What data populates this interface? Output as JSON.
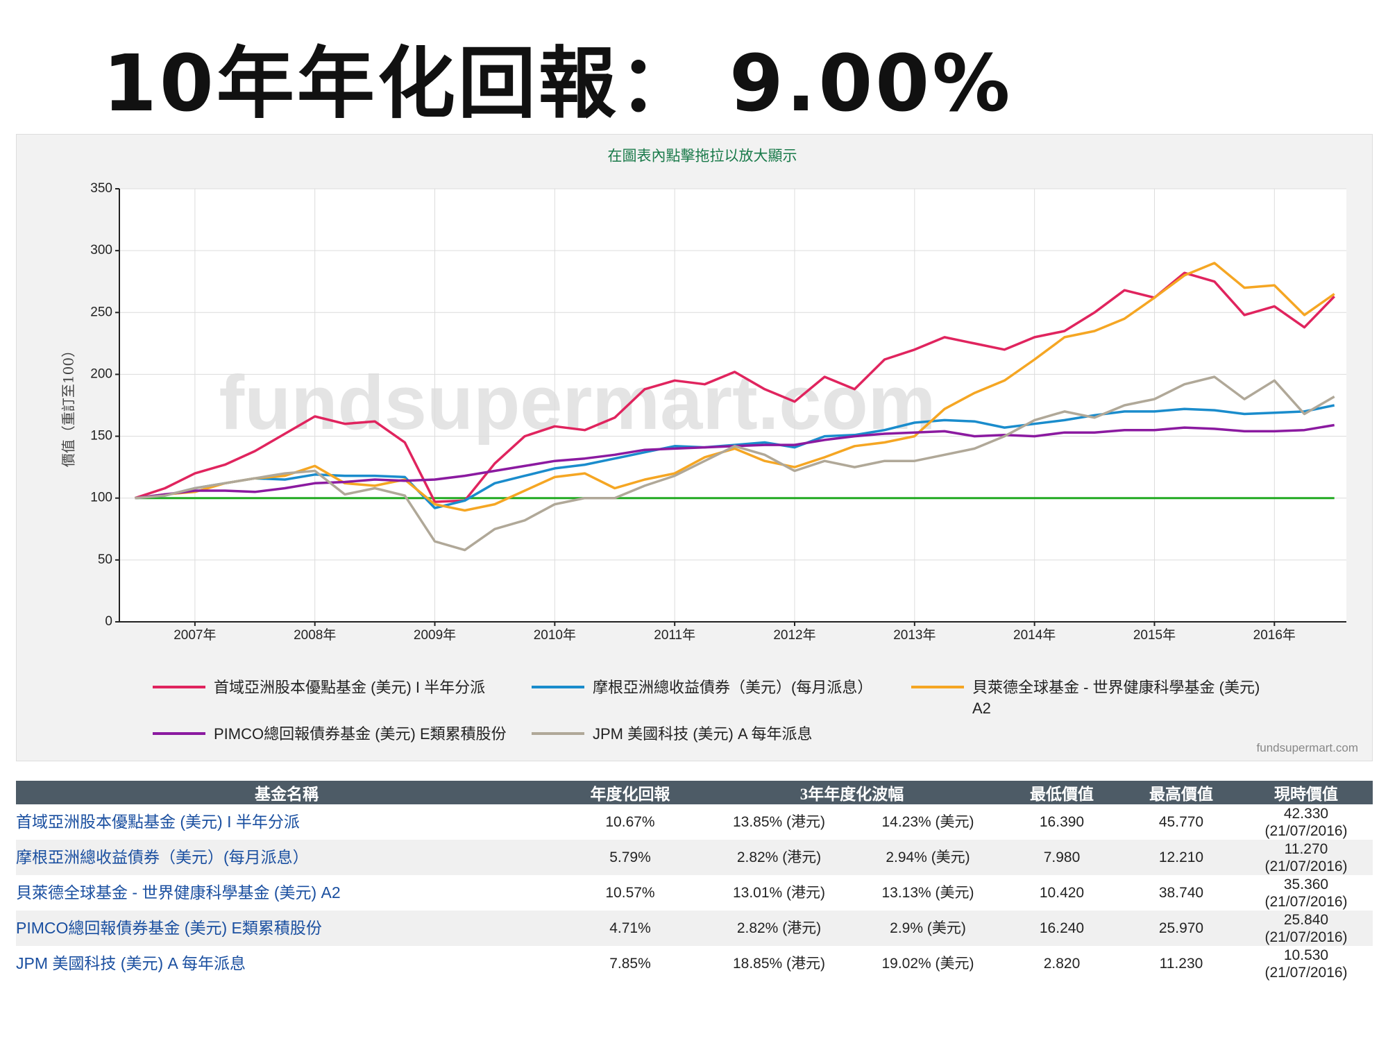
{
  "title": "10年年化回報： 9.00%",
  "chart_data": {
    "type": "line",
    "subtitle": "在圖表內點擊拖拉以放大顯示",
    "ylabel": "價值（重訂至100）",
    "watermark": "fundsupermart.com",
    "credit": "fundsupermart.com",
    "x": [
      2006.5,
      2006.75,
      2007,
      2007.25,
      2007.5,
      2007.75,
      2008,
      2008.25,
      2008.5,
      2008.75,
      2009,
      2009.25,
      2009.5,
      2009.75,
      2010,
      2010.25,
      2010.5,
      2010.75,
      2011,
      2011.25,
      2011.5,
      2011.75,
      2012,
      2012.25,
      2012.5,
      2012.75,
      2013,
      2013.25,
      2013.5,
      2013.75,
      2014,
      2014.25,
      2014.5,
      2014.75,
      2015,
      2015.25,
      2015.5,
      2015.75,
      2016,
      2016.25,
      2016.5
    ],
    "xlim": [
      2006.37,
      2016.6
    ],
    "xticks": [
      {
        "value": 2007,
        "label": "2007年"
      },
      {
        "value": 2008,
        "label": "2008年"
      },
      {
        "value": 2009,
        "label": "2009年"
      },
      {
        "value": 2010,
        "label": "2010年"
      },
      {
        "value": 2011,
        "label": "2011年"
      },
      {
        "value": 2012,
        "label": "2012年"
      },
      {
        "value": 2013,
        "label": "2013年"
      },
      {
        "value": 2014,
        "label": "2014年"
      },
      {
        "value": 2015,
        "label": "2015年"
      },
      {
        "value": 2016,
        "label": "2016年"
      }
    ],
    "ylim": [
      0,
      350
    ],
    "yticks": [
      0,
      50,
      100,
      150,
      200,
      250,
      300,
      350
    ],
    "grid": true,
    "baseline": 100,
    "baseline_color": "#22aa22",
    "series": [
      {
        "name": "首域亞洲股本優點基金 (美元) I 半年分派",
        "color": "#e0245e",
        "values": [
          100,
          108,
          120,
          127,
          138,
          152,
          166,
          160,
          162,
          145,
          97,
          98,
          128,
          150,
          158,
          155,
          165,
          188,
          195,
          192,
          202,
          188,
          178,
          198,
          188,
          212,
          220,
          230,
          225,
          220,
          230,
          235,
          250,
          268,
          262,
          282,
          275,
          248,
          255,
          238,
          263
        ]
      },
      {
        "name": "摩根亞洲總收益債券（美元）(每月派息）",
        "color": "#1a8ccc",
        "values": [
          100,
          102,
          108,
          112,
          116,
          115,
          119,
          118,
          118,
          117,
          92,
          98,
          112,
          118,
          124,
          127,
          132,
          137,
          142,
          141,
          143,
          145,
          141,
          150,
          151,
          155,
          161,
          163,
          162,
          157,
          160,
          163,
          167,
          170,
          170,
          172,
          171,
          168,
          169,
          170,
          175
        ]
      },
      {
        "name": "貝萊德全球基金 - 世界健康科學基金 (美元) A2",
        "color": "#f5a623",
        "values": [
          100,
          103,
          105,
          112,
          116,
          118,
          126,
          112,
          110,
          115,
          95,
          90,
          95,
          106,
          117,
          120,
          108,
          115,
          120,
          133,
          140,
          130,
          125,
          133,
          142,
          145,
          150,
          172,
          185,
          195,
          212,
          230,
          235,
          245,
          262,
          280,
          290,
          270,
          272,
          248,
          265
        ]
      },
      {
        "name": "PIMCO總回報債券基金 (美元) E類累積股份",
        "color": "#8b1aa0",
        "values": [
          100,
          103,
          106,
          106,
          105,
          108,
          112,
          113,
          115,
          114,
          115,
          118,
          122,
          126,
          130,
          132,
          135,
          139,
          140,
          141,
          142,
          143,
          143,
          147,
          150,
          152,
          153,
          154,
          150,
          151,
          150,
          153,
          153,
          155,
          155,
          157,
          156,
          154,
          154,
          155,
          159
        ]
      },
      {
        "name": "JPM 美國科技 (美元) A 每年派息",
        "color": "#b0a898",
        "values": [
          100,
          102,
          108,
          112,
          116,
          120,
          122,
          103,
          108,
          102,
          65,
          58,
          75,
          82,
          95,
          100,
          100,
          110,
          118,
          130,
          142,
          135,
          122,
          130,
          125,
          130,
          130,
          135,
          140,
          150,
          163,
          170,
          165,
          175,
          180,
          192,
          198,
          180,
          195,
          168,
          182
        ]
      }
    ]
  },
  "table": {
    "header": [
      "基金名稱",
      "年度化回報",
      "3年年度化波幅",
      "最低價值",
      "最高價值",
      "現時價值"
    ],
    "rows": [
      [
        "首域亞洲股本優點基金 (美元) I 半年分派",
        "10.67%",
        "13.85% (港元)",
        "14.23% (美元)",
        "16.390",
        "45.770",
        "42.330",
        "(21/07/2016)"
      ],
      [
        "摩根亞洲總收益債券（美元）(每月派息）",
        "5.79%",
        "2.82% (港元)",
        "2.94% (美元)",
        "7.980",
        "12.210",
        "11.270",
        "(21/07/2016)"
      ],
      [
        "貝萊德全球基金 - 世界健康科學基金 (美元) A2",
        "10.57%",
        "13.01% (港元)",
        "13.13% (美元)",
        "10.420",
        "38.740",
        "35.360",
        "(21/07/2016)"
      ],
      [
        "PIMCO總回報債券基金 (美元) E類累積股份",
        "4.71%",
        "2.82% (港元)",
        "2.9% (美元)",
        "16.240",
        "25.970",
        "25.840",
        "(21/07/2016)"
      ],
      [
        "JPM 美國科技 (美元) A 每年派息",
        "7.85%",
        "18.85% (港元)",
        "19.02% (美元)",
        "2.820",
        "11.230",
        "10.530",
        "(21/07/2016)"
      ]
    ]
  }
}
